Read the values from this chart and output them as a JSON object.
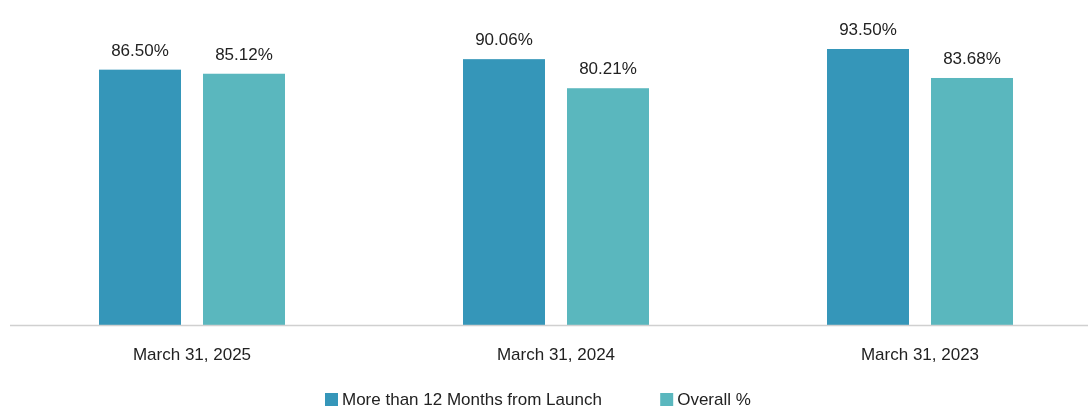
{
  "chart_data": {
    "type": "bar",
    "categories": [
      "March 31, 2025",
      "March 31, 2024",
      "March 31, 2023"
    ],
    "series": [
      {
        "name": "More than 12 Months from Launch",
        "color": "#3596b9",
        "values": [
          86.5,
          90.06,
          93.5
        ],
        "value_labels": [
          "86.50%",
          "90.06%",
          "93.50%"
        ]
      },
      {
        "name": "Overall %",
        "color": "#5ab7be",
        "values": [
          85.12,
          80.21,
          83.68
        ],
        "value_labels": [
          "85.12%",
          "80.21%",
          "83.68%"
        ]
      }
    ],
    "legend": "bottom"
  }
}
